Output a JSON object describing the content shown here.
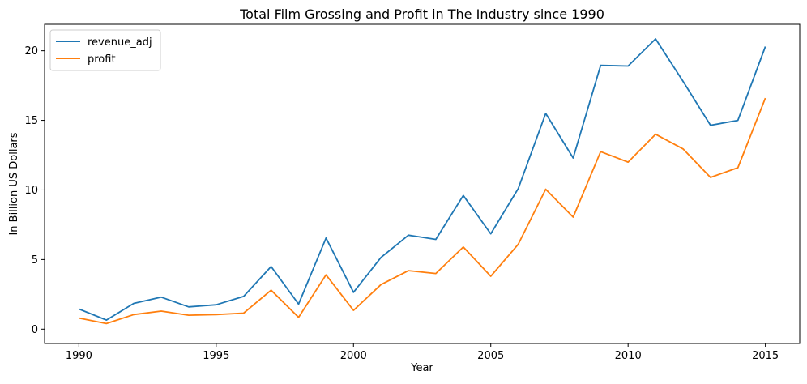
{
  "chart_data": {
    "type": "line",
    "title": "Total Film Grossing and Profit in The Industry since 1990",
    "xlabel": "Year",
    "ylabel": "In Billion US Dollars",
    "x": [
      1990,
      1991,
      1992,
      1993,
      1994,
      1995,
      1996,
      1997,
      1998,
      1999,
      2000,
      2001,
      2002,
      2003,
      2004,
      2005,
      2006,
      2007,
      2008,
      2009,
      2010,
      2011,
      2012,
      2013,
      2014,
      2015
    ],
    "xlim": [
      1988.75,
      2016.25
    ],
    "ylim": [
      -1.03,
      21.9
    ],
    "xticks": [
      1990,
      1995,
      2000,
      2005,
      2010,
      2015
    ],
    "yticks": [
      0,
      5,
      10,
      15,
      20
    ],
    "grid": false,
    "legend_position": "top-left",
    "series": [
      {
        "name": "revenue_adj",
        "color": "#1f77b4",
        "values": [
          1.45,
          0.65,
          1.85,
          2.3,
          1.6,
          1.75,
          2.35,
          4.5,
          1.8,
          6.55,
          2.65,
          5.15,
          6.75,
          6.45,
          9.6,
          6.85,
          10.1,
          15.5,
          12.3,
          18.95,
          18.9,
          20.85,
          17.8,
          14.65,
          15.0,
          20.3
        ]
      },
      {
        "name": "profit",
        "color": "#ff7f0e",
        "values": [
          0.8,
          0.4,
          1.05,
          1.3,
          1.0,
          1.05,
          1.15,
          2.8,
          0.85,
          3.9,
          1.35,
          3.2,
          4.2,
          4.0,
          5.9,
          3.8,
          6.1,
          10.05,
          8.05,
          12.75,
          12.0,
          14.0,
          12.95,
          10.9,
          11.6,
          16.6
        ]
      }
    ]
  }
}
